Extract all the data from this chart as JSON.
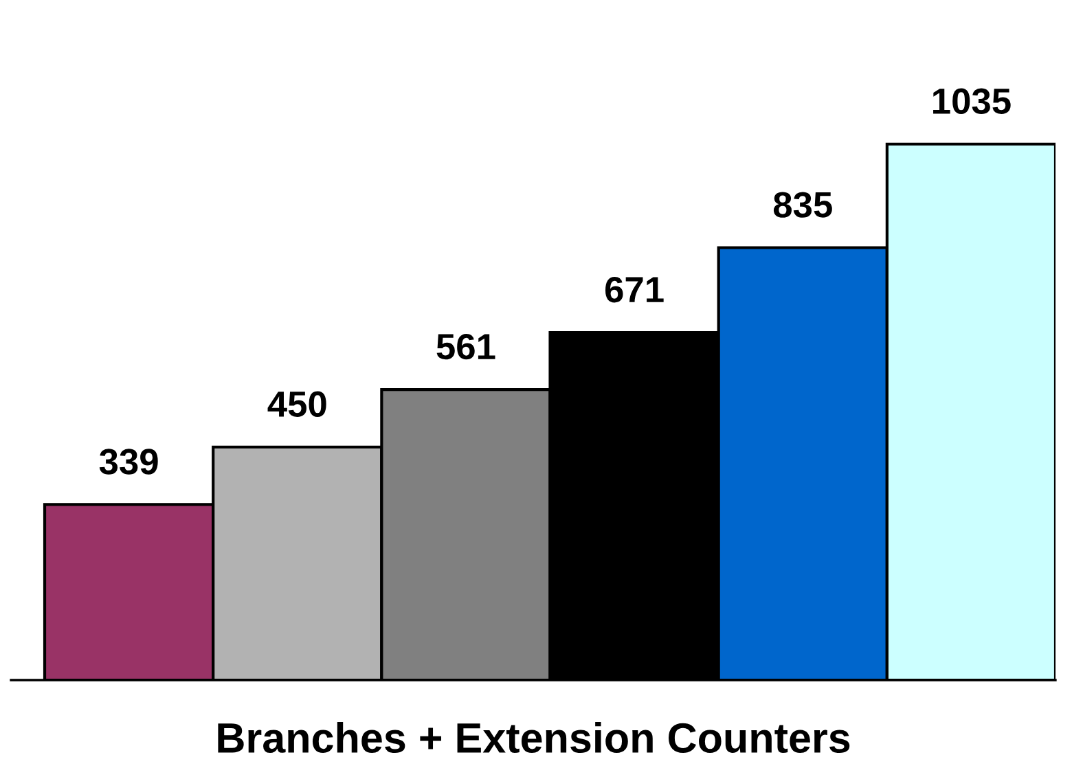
{
  "chart_data": {
    "type": "bar",
    "xlabel": "Branches + Extension Counters",
    "categories": [
      null,
      null,
      null,
      null,
      null,
      null
    ],
    "values": [
      339,
      450,
      561,
      671,
      835,
      1035
    ],
    "colors": [
      "#993366",
      "#b2b2b2",
      "#808080",
      "#000000",
      "#0066cc",
      "#ccffff"
    ],
    "data_labels": true,
    "grid": false,
    "legend": false,
    "tick_labels": false
  }
}
